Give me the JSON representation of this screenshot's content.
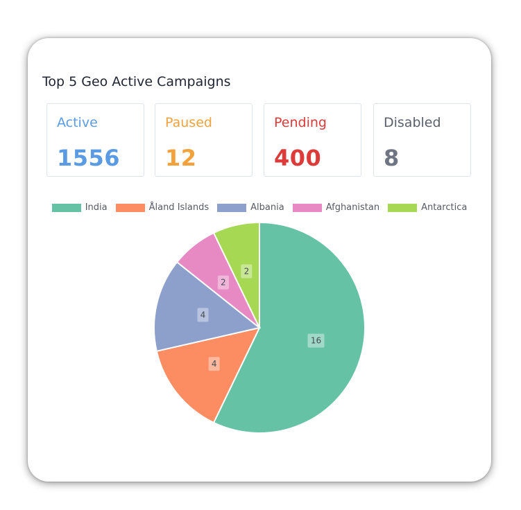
{
  "card": {
    "title": "Top 5 Geo Active Campaigns"
  },
  "stats": [
    {
      "label": "Active",
      "value": "1556",
      "color": "#5b9be4"
    },
    {
      "label": "Paused",
      "value": "12",
      "color": "#f2a23c"
    },
    {
      "label": "Pending",
      "value": "400",
      "color": "#dd3a3a"
    },
    {
      "label": "Disabled",
      "value": "8",
      "color": "#707583"
    }
  ],
  "chart_data": {
    "type": "pie",
    "categories": [
      "India",
      "Åland Islands",
      "Albania",
      "Afghanistan",
      "Antarctica"
    ],
    "values": [
      16,
      4,
      4,
      2,
      2
    ],
    "colors": [
      "#66c2a5",
      "#fc8d62",
      "#8da0cb",
      "#e78ac3",
      "#a6d854"
    ],
    "legend": "top",
    "data_labels": true
  }
}
